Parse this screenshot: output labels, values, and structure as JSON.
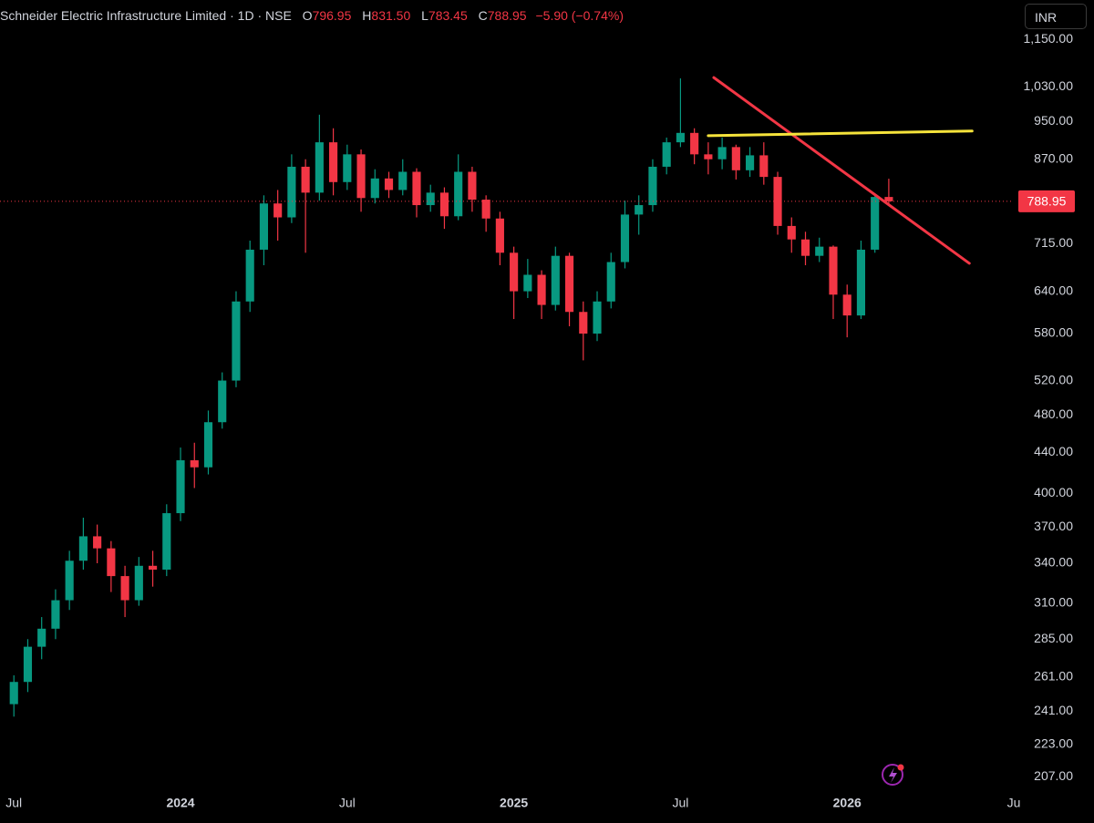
{
  "header": {
    "title": "Schneider Electric Infrastructure Limited · 1D · NSE",
    "open_label": "O",
    "open": "796.95",
    "high_label": "H",
    "high": "831.50",
    "low_label": "L",
    "low": "783.45",
    "close_label": "C",
    "close": "788.95",
    "change": "−5.90 (−0.74%)",
    "currency": "INR"
  },
  "chart_data": {
    "type": "candlestick",
    "log_scale": true,
    "grid": false,
    "up_color": "#089981",
    "down_color": "#f23645",
    "x": [
      0,
      0.5,
      1,
      1.5,
      2,
      2.5,
      3,
      3.5,
      4,
      4.5,
      5,
      5.5,
      6,
      6.5,
      7,
      7.5,
      8,
      8.5,
      9,
      9.5,
      10,
      10.5,
      11,
      11.5,
      12,
      12.5,
      13,
      13.5,
      14,
      14.5,
      15,
      15.5,
      16,
      16.5,
      17,
      17.5,
      18,
      18.5,
      19,
      19.5,
      20,
      20.5,
      21,
      21.5,
      22,
      22.5,
      23,
      23.5,
      24,
      24.5,
      25,
      25.5,
      26,
      26.5,
      27,
      27.5,
      28,
      28.5,
      29,
      29.5,
      30,
      30.5,
      31,
      31.5
    ],
    "open": [
      245,
      258,
      280,
      292,
      312,
      342,
      362,
      352,
      330,
      312,
      338,
      335,
      382,
      432,
      425,
      472,
      520,
      625,
      705,
      785,
      760,
      855,
      805,
      905,
      825,
      880,
      795,
      832,
      810,
      845,
      782,
      805,
      762,
      845,
      792,
      758,
      700,
      640,
      665,
      620,
      695,
      610,
      580,
      625,
      685,
      765,
      782,
      855,
      905,
      925,
      880,
      870,
      895,
      848,
      878,
      835,
      745,
      722,
      695,
      710,
      635,
      605,
      705,
      796.95
    ],
    "high": [
      262,
      285,
      300,
      320,
      350,
      378,
      372,
      358,
      338,
      345,
      350,
      390,
      445,
      450,
      485,
      530,
      640,
      720,
      800,
      810,
      880,
      870,
      965,
      935,
      900,
      890,
      850,
      845,
      870,
      852,
      820,
      815,
      880,
      855,
      800,
      770,
      710,
      690,
      672,
      710,
      700,
      625,
      640,
      700,
      790,
      800,
      870,
      915,
      1050,
      935,
      905,
      915,
      900,
      895,
      905,
      845,
      760,
      735,
      725,
      712,
      650,
      720,
      800,
      831.5
    ],
    "low": [
      238,
      252,
      272,
      285,
      305,
      335,
      340,
      318,
      300,
      308,
      322,
      330,
      375,
      405,
      418,
      465,
      512,
      610,
      680,
      720,
      750,
      700,
      790,
      800,
      810,
      770,
      785,
      795,
      800,
      760,
      770,
      740,
      755,
      770,
      735,
      680,
      600,
      630,
      600,
      612,
      590,
      545,
      570,
      615,
      675,
      730,
      770,
      840,
      895,
      860,
      840,
      850,
      830,
      835,
      820,
      730,
      700,
      680,
      685,
      600,
      575,
      600,
      700,
      783.45
    ],
    "close": [
      258,
      280,
      292,
      312,
      342,
      362,
      352,
      330,
      312,
      338,
      335,
      382,
      432,
      425,
      472,
      520,
      625,
      705,
      785,
      760,
      855,
      805,
      905,
      825,
      880,
      795,
      832,
      810,
      845,
      782,
      805,
      762,
      845,
      792,
      758,
      700,
      640,
      665,
      620,
      695,
      610,
      580,
      625,
      685,
      765,
      782,
      855,
      905,
      925,
      880,
      870,
      895,
      848,
      878,
      835,
      745,
      722,
      695,
      710,
      635,
      605,
      705,
      796.95,
      788.95
    ],
    "xlim": [
      -0.5,
      36
    ],
    "ylim": [
      201,
      1260
    ],
    "xticks": [
      {
        "value": 0,
        "label": "Jul"
      },
      {
        "value": 6,
        "label": "2024"
      },
      {
        "value": 12,
        "label": "Jul"
      },
      {
        "value": 18,
        "label": "2025"
      },
      {
        "value": 24,
        "label": "Jul"
      },
      {
        "value": 30,
        "label": "2026"
      },
      {
        "value": 36,
        "label": "Ju"
      }
    ],
    "yticks": [
      {
        "value": 1150,
        "label": "1,150.00"
      },
      {
        "value": 1030,
        "label": "1,030.00"
      },
      {
        "value": 950,
        "label": "950.00"
      },
      {
        "value": 870,
        "label": "870.00"
      },
      {
        "value": 715,
        "label": "715.00"
      },
      {
        "value": 640,
        "label": "640.00"
      },
      {
        "value": 580,
        "label": "580.00"
      },
      {
        "value": 520,
        "label": "520.00"
      },
      {
        "value": 480,
        "label": "480.00"
      },
      {
        "value": 440,
        "label": "440.00"
      },
      {
        "value": 400,
        "label": "400.00"
      },
      {
        "value": 370,
        "label": "370.00"
      },
      {
        "value": 340,
        "label": "340.00"
      },
      {
        "value": 310,
        "label": "310.00"
      },
      {
        "value": 285,
        "label": "285.00"
      },
      {
        "value": 261,
        "label": "261.00"
      },
      {
        "value": 241,
        "label": "241.00"
      },
      {
        "value": 223,
        "label": "223.00"
      },
      {
        "value": 207,
        "label": "207.00"
      }
    ],
    "drawings": [
      {
        "color": "#f23645",
        "x": [
          25.2,
          34.4
        ],
        "y": [
          1052,
          683
        ]
      },
      {
        "color": "#f5e33b",
        "x": [
          25.0,
          34.5
        ],
        "y": [
          919,
          929
        ]
      }
    ]
  }
}
